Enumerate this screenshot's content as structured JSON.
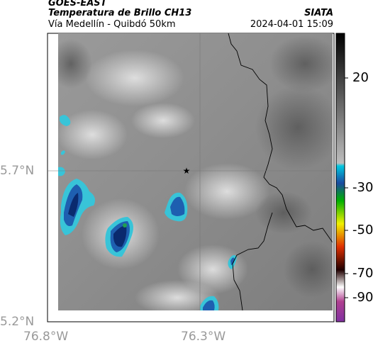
{
  "header": {
    "satellite": "GOES-EAST",
    "product": "Temperatura de Brillo CH13",
    "region": "Vía Medellín - Quibdó 50km",
    "agency": "SIATA",
    "timestamp": "2024-04-01 15:09"
  },
  "axes": {
    "lat_ticks": [
      "5.7°N",
      "5.2°N"
    ],
    "lon_ticks": [
      "76.8°W",
      "76.3°W"
    ]
  },
  "colorbar": {
    "tick_labels": [
      "20",
      "-30",
      "-50",
      "-70",
      "-90"
    ]
  },
  "map": {
    "marker": "star-icon",
    "colors": {
      "cold_cloud_dark": "#0a2a6e",
      "cold_cloud_mid": "#2f6fc0",
      "cold_cloud_edge": "#38c4d8",
      "background_gray": "#8c8c8c"
    }
  }
}
